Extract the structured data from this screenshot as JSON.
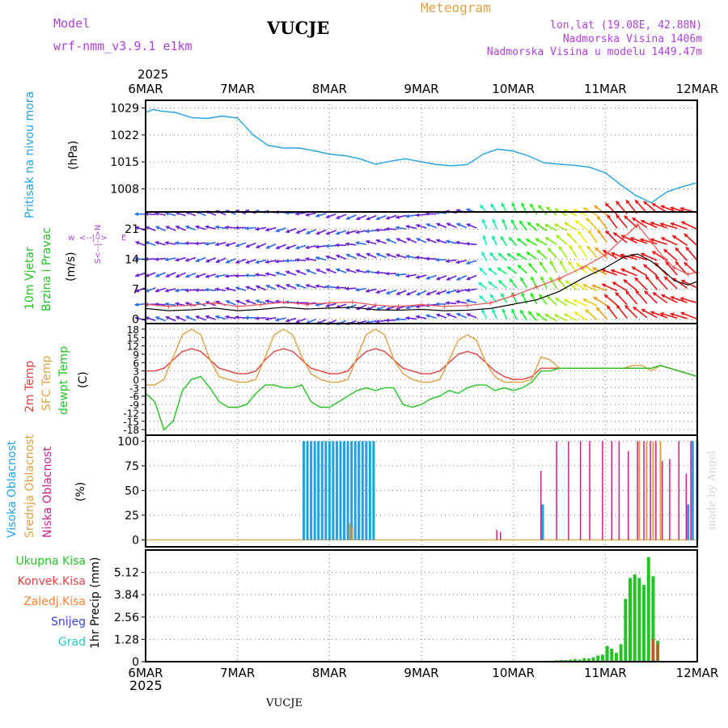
{
  "header": {
    "model_label": "Model",
    "model_name": "wrf-nmm_v3.9.1 e1km",
    "station": "VUCJE",
    "meteogram": "Meteogram",
    "lonlat": "lon,lat (19.08E, 42.88N)",
    "altitude": "Nadmorska Visina 1406m",
    "model_altitude": "Nadmorska Visina u modelu 1449.47m",
    "year_top": "2025",
    "year_bottom": "2025",
    "footer_station": "VUCJE",
    "credit": "made by Angel"
  },
  "colors": {
    "pressure": "#1fa3e6",
    "temp2m": "#e04040",
    "sfc_temp": "#e0a040",
    "dewpt": "#22c422",
    "high_cloud": "#1fa3e6",
    "mid_cloud": "#e0a040",
    "low_cloud": "#cc1f8a",
    "total_precip": "#22c422",
    "conv_precip": "#e04040",
    "frozen_precip": "#ff8030",
    "snow": "#4040e0",
    "hail": "#20c8c8",
    "wind_label": "#22c422",
    "wind_axis": "#b040e0",
    "arrow_calm": "#6a1fd9",
    "arrow_mid": "#2a6ae6"
  },
  "panels": {
    "pressure": {
      "label1": "Pritisak na nivou mora",
      "label2": "(hPa)"
    },
    "wind": {
      "label1": "10m Vjetar",
      "label2": "Brzina i Pravac",
      "label3": "(m/s)",
      "compass": [
        "w",
        "<--|-->",
        "E",
        "S<--|-->N"
      ]
    },
    "temp": {
      "label1": "2m Temp",
      "label2": "SFC Temp",
      "label3": "dewpt Temp",
      "label4": "(C)"
    },
    "cloud": {
      "label1": "Visoka Oblacnost",
      "label2": "Srednja Oblacnost",
      "label3": "Niska Oblacnost",
      "label4": "(%)"
    },
    "precip": {
      "legend": [
        "Ukupna Kisa",
        "Konvek.Kisa",
        "Zaledj.Kisa",
        "Snijeg",
        "Grad"
      ],
      "ylabel": "1hr Precip (mm)"
    }
  },
  "chart_data": [
    {
      "type": "line",
      "name": "pressure",
      "xlabels": [
        "6MAR",
        "7MAR",
        "8MAR",
        "9MAR",
        "10MAR",
        "11MAR",
        "12MAR"
      ],
      "ylim": [
        1002,
        1031
      ],
      "yticks": [
        "1029",
        "1022",
        "1015",
        "1008"
      ],
      "ytick_values": [
        1029,
        1022,
        1015,
        1008
      ],
      "x": [
        0,
        0.08,
        0.17,
        0.33,
        0.5,
        0.67,
        0.83,
        1.0,
        1.17,
        1.33,
        1.5,
        1.67,
        1.83,
        2.0,
        2.17,
        2.33,
        2.5,
        2.67,
        2.83,
        3.0,
        3.17,
        3.33,
        3.5,
        3.67,
        3.83,
        4.0,
        4.17,
        4.33,
        4.5,
        4.67,
        4.83,
        5.0,
        5.17,
        5.33,
        5.5,
        5.67,
        5.83,
        6.0
      ],
      "values": [
        1027.8,
        1028.6,
        1028.2,
        1027.8,
        1026.5,
        1026.3,
        1026.9,
        1026.4,
        1022.0,
        1019.3,
        1018.6,
        1018.6,
        1017.9,
        1017.0,
        1016.6,
        1015.8,
        1014.4,
        1015.2,
        1015.8,
        1015.0,
        1014.3,
        1014.0,
        1014.3,
        1017.0,
        1018.3,
        1017.8,
        1016.5,
        1014.8,
        1014.4,
        1014.1,
        1013.6,
        1012.2,
        1009.0,
        1006.3,
        1004.4,
        1007.2,
        1008.5,
        1009.6
      ]
    },
    {
      "type": "line",
      "name": "wind",
      "ylim": [
        -1,
        25
      ],
      "yticks": [
        "21",
        "14",
        "7",
        "0"
      ],
      "ytick_values": [
        21,
        14,
        7,
        0
      ],
      "x": [
        0,
        0.25,
        0.5,
        0.75,
        1.0,
        1.25,
        1.5,
        1.75,
        2.0,
        2.25,
        2.5,
        2.75,
        3.0,
        3.25,
        3.5,
        3.75,
        4.0,
        4.25,
        4.5,
        4.75,
        5.0,
        5.2,
        5.35,
        5.5,
        5.65,
        5.75,
        5.9,
        6.0
      ],
      "speed": [
        2.5,
        2.0,
        2.2,
        2.6,
        2.0,
        2.3,
        2.8,
        2.4,
        2.6,
        2.8,
        2.2,
        2.1,
        2.3,
        2.0,
        2.1,
        2.5,
        3.5,
        4.5,
        6.5,
        9.5,
        12,
        14.5,
        15.2,
        13.5,
        11.0,
        9.0,
        8.0,
        8.8
      ],
      "gust": [
        3.5,
        3.0,
        3.3,
        3.8,
        3.0,
        3.4,
        4.0,
        3.5,
        3.8,
        4.0,
        3.3,
        3.0,
        3.4,
        3.0,
        3.2,
        3.8,
        5.5,
        7.5,
        9.5,
        12,
        15,
        19,
        22,
        18,
        14,
        12,
        10.5,
        11
      ]
    },
    {
      "type": "line",
      "name": "temperature",
      "ylim": [
        -20,
        20
      ],
      "yticks": [
        "18",
        "15",
        "12",
        "9",
        "6",
        "3",
        "0",
        "-3",
        "-6",
        "-9",
        "-12",
        "-15",
        "-18"
      ],
      "ytick_values": [
        18,
        15,
        12,
        9,
        6,
        3,
        0,
        -3,
        -6,
        -9,
        -12,
        -15,
        -18
      ],
      "x": [
        0,
        0.1,
        0.2,
        0.3,
        0.4,
        0.5,
        0.6,
        0.7,
        0.8,
        0.9,
        1.0,
        1.1,
        1.2,
        1.3,
        1.4,
        1.5,
        1.6,
        1.7,
        1.8,
        1.9,
        2.0,
        2.1,
        2.2,
        2.3,
        2.4,
        2.5,
        2.6,
        2.7,
        2.8,
        2.9,
        3.0,
        3.1,
        3.2,
        3.3,
        3.4,
        3.5,
        3.6,
        3.7,
        3.8,
        3.9,
        4.0,
        4.1,
        4.2,
        4.3,
        4.4,
        4.5,
        4.6,
        4.7,
        4.8,
        4.9,
        5.0,
        5.1,
        5.2,
        5.3,
        5.4,
        5.5,
        5.6,
        5.7,
        5.8,
        5.9,
        6.0
      ],
      "series": [
        {
          "key": "temp2m",
          "values": [
            3,
            3,
            4,
            7,
            10,
            11,
            10,
            7,
            4,
            3,
            2,
            2,
            3,
            7,
            10,
            11,
            10,
            7,
            4,
            3,
            2,
            2,
            3,
            7,
            10,
            11,
            10,
            7,
            4,
            3,
            2,
            2,
            3,
            6,
            9,
            10,
            9,
            6,
            3,
            1,
            0,
            0,
            1,
            4,
            4,
            4,
            4,
            4,
            4,
            4,
            4,
            4,
            4,
            4,
            4,
            4,
            5,
            4,
            3,
            2,
            1
          ]
        },
        {
          "key": "sfc_temp",
          "values": [
            -2,
            -2,
            0,
            8,
            16,
            18,
            16,
            7,
            1,
            0,
            -1,
            -1,
            0,
            8,
            16,
            18,
            16,
            8,
            2,
            0,
            -1,
            -1,
            0,
            8,
            16,
            18,
            16,
            7,
            2,
            0,
            -1,
            -1,
            0,
            7,
            14,
            16,
            14,
            6,
            1,
            -1,
            -1,
            -1,
            0,
            8,
            7,
            4,
            4,
            4,
            4,
            4,
            4,
            4,
            4,
            5,
            5,
            3,
            5,
            4,
            3,
            2,
            1
          ]
        },
        {
          "key": "dewpt",
          "values": [
            -5,
            -8,
            -18,
            -15,
            -4,
            0,
            1,
            -3,
            -8,
            -10,
            -10,
            -9,
            -5,
            -2,
            -2,
            -3,
            -3,
            -2,
            -8,
            -10,
            -10,
            -8,
            -6,
            -4,
            -3,
            -4,
            -3,
            -3,
            -9,
            -10,
            -9,
            -7,
            -6,
            -4,
            -5,
            -3,
            -2,
            -2,
            -4,
            -3,
            -4,
            -3,
            -1,
            3,
            3,
            4,
            4,
            4,
            4,
            4,
            4,
            4,
            4,
            4,
            4,
            4,
            5,
            4,
            3,
            2,
            1
          ]
        }
      ]
    },
    {
      "type": "bar",
      "name": "cloud_cover",
      "ylim": [
        0,
        100
      ],
      "yticks": [
        "100",
        "75",
        "50",
        "25",
        "0"
      ],
      "ytick_values": [
        100,
        75,
        50,
        25,
        0
      ],
      "high": {
        "x": [
          1.72,
          1.76,
          1.8,
          1.84,
          1.88,
          1.92,
          1.96,
          2.0,
          2.04,
          2.08,
          2.12,
          2.16,
          2.2,
          2.24,
          2.28,
          2.32,
          2.36,
          2.4,
          2.44,
          2.48,
          4.32,
          5.9,
          5.95,
          6.0
        ],
        "values": [
          100,
          100,
          100,
          100,
          100,
          100,
          100,
          100,
          100,
          100,
          100,
          100,
          100,
          100,
          100,
          100,
          100,
          100,
          100,
          100,
          36,
          36,
          100,
          100
        ]
      },
      "mid": {
        "x": [
          2.22,
          2.25,
          5.37,
          5.45,
          5.52,
          5.6
        ],
        "values": [
          17,
          13,
          100,
          100,
          100,
          100
        ]
      },
      "low": {
        "x": [
          3.82,
          3.86,
          4.3,
          4.47,
          4.6,
          4.73,
          4.83,
          4.97,
          5.07,
          5.15,
          5.25,
          5.35,
          5.42,
          5.49,
          5.55,
          5.62,
          5.7,
          5.8,
          5.88,
          5.93,
          6.0
        ],
        "values": [
          10,
          8,
          70,
          100,
          100,
          100,
          100,
          100,
          100,
          100,
          90,
          100,
          100,
          100,
          100,
          80,
          82,
          100,
          67,
          100,
          100
        ]
      }
    },
    {
      "type": "bar",
      "name": "precipitation",
      "ylim": [
        0,
        6.4
      ],
      "yticks": [
        "5.12",
        "3.84",
        "2.56",
        "1.28",
        "0"
      ],
      "ytick_values": [
        5.12,
        3.84,
        2.56,
        1.28,
        0
      ],
      "total": {
        "x": [
          4.42,
          4.47,
          4.52,
          4.57,
          4.62,
          4.67,
          4.72,
          4.77,
          4.82,
          4.87,
          4.92,
          4.97,
          5.02,
          5.07,
          5.12,
          5.17,
          5.22,
          5.27,
          5.32,
          5.37,
          5.42,
          5.47,
          5.52,
          5.57
        ],
        "values": [
          0.05,
          0.08,
          0.1,
          0.1,
          0.12,
          0.15,
          0.12,
          0.2,
          0.18,
          0.25,
          0.35,
          0.4,
          0.9,
          0.75,
          0.5,
          1.0,
          3.6,
          4.8,
          5.0,
          4.8,
          4.4,
          6.0,
          4.9,
          1.2
        ]
      },
      "frozen": {
        "x": [
          5.52,
          5.57
        ],
        "values": [
          1.3,
          1.0
        ]
      }
    }
  ]
}
